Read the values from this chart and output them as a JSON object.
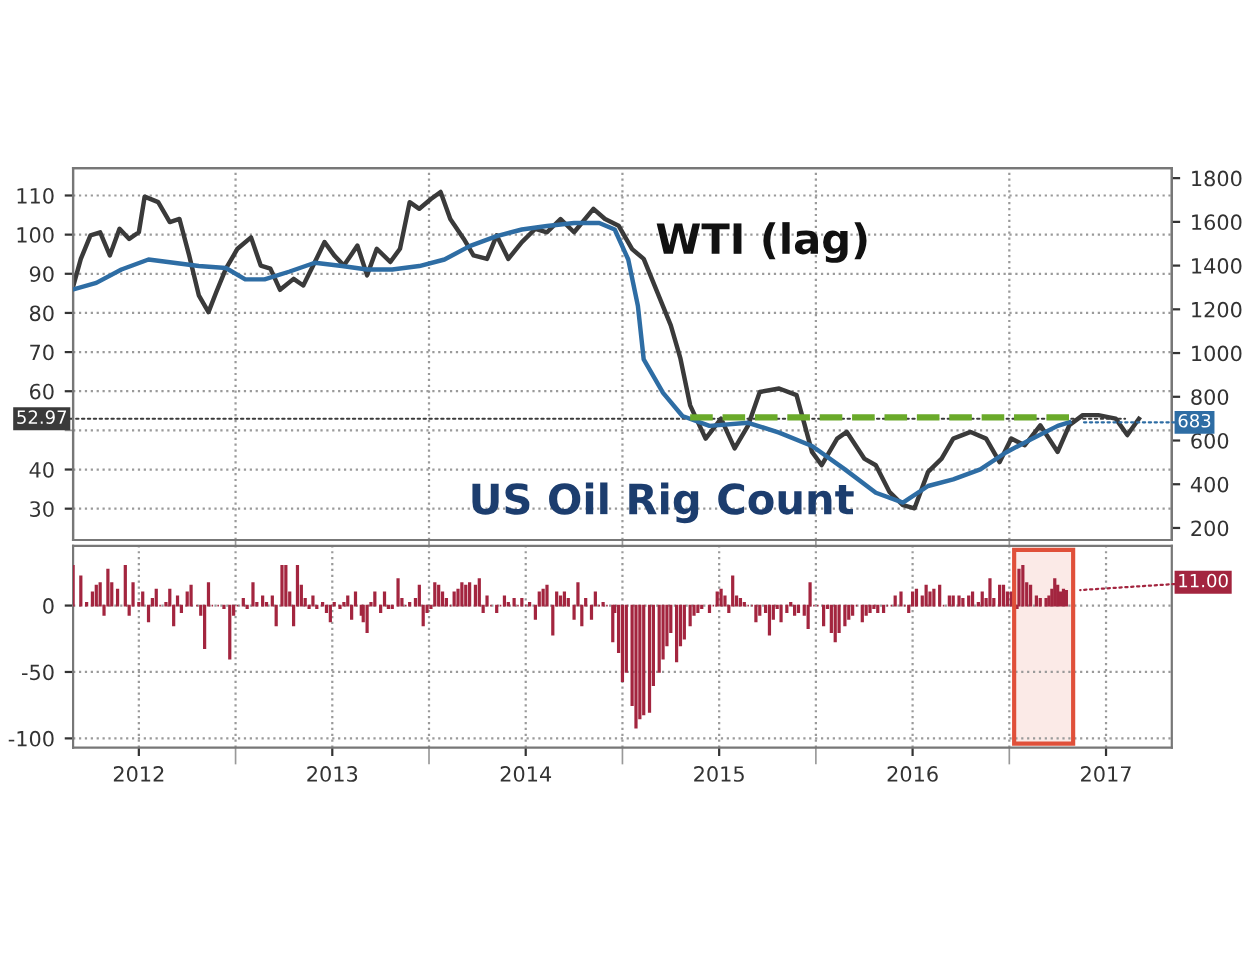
{
  "chart_data": [
    {
      "type": "line",
      "xlim": [
        2012.16,
        2017.84
      ],
      "xticks": [
        {
          "value": 2013,
          "label": null
        },
        {
          "value": 2014,
          "label": null
        },
        {
          "value": 2015,
          "label": null
        },
        {
          "value": 2016,
          "label": null
        },
        {
          "value": 2017,
          "label": null
        }
      ],
      "ylim": [
        22,
        117
      ],
      "yticks": [
        30,
        40,
        {
          "value": 50,
          "label": null
        },
        60,
        70,
        80,
        90,
        100,
        110
      ],
      "y2lim": [
        145,
        1846
      ],
      "y2ticks": [
        200,
        400,
        600,
        800,
        1000,
        1200,
        1400,
        1600,
        1800
      ],
      "tick_labels": "y",
      "grid": true,
      "annotations": [
        "WTI (lag)",
        "US Oil Rig Count"
      ],
      "series": [
        {
          "color": "#3a3a3a",
          "x": [
            2012.16,
            2012.2,
            2012.25,
            2012.3,
            2012.35,
            2012.4,
            2012.45,
            2012.5,
            2012.53,
            2012.6,
            2012.66,
            2012.71,
            2012.76,
            2012.81,
            2012.86,
            2012.9,
            2012.95,
            2013.01,
            2013.08,
            2013.13,
            2013.18,
            2013.23,
            2013.3,
            2013.35,
            2013.41,
            2013.46,
            2013.51,
            2013.56,
            2013.63,
            2013.68,
            2013.73,
            2013.8,
            2013.85,
            2013.9,
            2013.95,
            2014.01,
            2014.06,
            2014.11,
            2014.18,
            2014.23,
            2014.3,
            2014.35,
            2014.41,
            2014.48,
            2014.55,
            2014.61,
            2014.68,
            2014.75,
            2014.85,
            2014.91,
            2014.98,
            2015.05,
            2015.11,
            2015.18,
            2015.25,
            2015.3,
            2015.35,
            2015.43,
            2015.51,
            2015.58,
            2015.65,
            2015.71,
            2015.81,
            2015.9,
            2015.98,
            2016.03,
            2016.11,
            2016.16,
            2016.25,
            2016.31,
            2016.38,
            2016.45,
            2016.51,
            2016.58,
            2016.65,
            2016.71,
            2016.8,
            2016.88,
            2016.95,
            2017.01,
            2017.08,
            2017.16,
            2017.25,
            2017.31,
            2017.38,
            2017.46,
            2017.55,
            2017.61,
            2017.67
          ],
          "values": [
            86.7,
            93.8,
            99.8,
            100.6,
            94.7,
            101.5,
            98.9,
            100.6,
            109.7,
            108.3,
            103.2,
            104,
            94.7,
            84.5,
            80.2,
            85.3,
            91.3,
            96.4,
            99.3,
            92.1,
            91.3,
            85.9,
            88.7,
            87,
            93,
            98.1,
            94.7,
            92.1,
            97.2,
            89.6,
            96.4,
            93,
            96.4,
            108.3,
            106.6,
            109.1,
            110.9,
            104,
            98.9,
            94.7,
            93.8,
            99.8,
            93.8,
            98.1,
            101.5,
            100.6,
            104,
            100.6,
            106.6,
            104,
            102.3,
            96.3,
            93.8,
            85.3,
            76.8,
            68.3,
            56.4,
            47.9,
            53,
            45.4,
            51.3,
            59.8,
            60.7,
            59,
            44.5,
            41.1,
            47.9,
            49.6,
            42.8,
            41.1,
            34.3,
            30.9,
            30.1,
            39.4,
            42.8,
            47.9,
            49.6,
            47.9,
            41.9,
            47.9,
            46.2,
            51.3,
            44.5,
            51.3,
            53.9,
            53.9,
            53,
            48.8,
            52.97
          ],
          "value_labels": [
            null,
            null,
            null,
            null,
            null,
            null,
            null,
            null,
            null,
            null,
            null,
            null,
            null,
            null,
            null,
            null,
            null,
            null,
            null,
            null,
            null,
            null,
            null,
            null,
            null,
            null,
            null,
            null,
            null,
            null,
            null,
            null,
            null,
            null,
            null,
            null,
            null,
            null,
            null,
            null,
            null,
            null,
            null,
            null,
            null,
            null,
            null,
            null,
            null,
            null,
            null,
            null,
            null,
            null,
            null,
            null,
            null,
            null,
            null,
            null,
            null,
            null,
            null,
            null,
            null,
            null,
            null,
            null,
            null,
            null,
            null,
            null,
            null,
            null,
            null,
            null,
            null,
            null,
            null,
            null,
            null,
            null,
            null,
            null,
            null,
            null,
            null,
            null,
            "52.97"
          ]
        },
        {
          "color": "#2e6da4",
          "axis": "y2",
          "x": [
            2012.16,
            2012.28,
            2012.41,
            2012.55,
            2012.68,
            2012.81,
            2012.95,
            2013.05,
            2013.15,
            2013.28,
            2013.41,
            2013.55,
            2013.68,
            2013.81,
            2013.95,
            2014.08,
            2014.21,
            2014.35,
            2014.48,
            2014.61,
            2014.75,
            2014.88,
            2014.96,
            2015.03,
            2015.08,
            2015.11,
            2015.21,
            2015.31,
            2015.45,
            2015.65,
            2015.81,
            2015.98,
            2016.15,
            2016.31,
            2016.45,
            2016.58,
            2016.71,
            2016.85,
            2016.98,
            2017.11,
            2017.25,
            2017.31
          ],
          "values": [
            1291,
            1321,
            1382,
            1428,
            1413,
            1398,
            1389,
            1337,
            1337,
            1373,
            1413,
            1398,
            1382,
            1382,
            1398,
            1428,
            1489,
            1535,
            1565,
            1581,
            1595,
            1595,
            1565,
            1428,
            1215,
            971,
            818,
            712,
            667,
            681,
            636,
            575,
            468,
            361,
            316,
            392,
            422,
            468,
            544,
            605,
            667,
            683
          ],
          "value_labels": [
            null,
            null,
            null,
            null,
            null,
            null,
            null,
            null,
            null,
            null,
            null,
            null,
            null,
            null,
            null,
            null,
            null,
            null,
            null,
            null,
            null,
            null,
            null,
            null,
            null,
            null,
            null,
            null,
            null,
            null,
            null,
            null,
            null,
            null,
            null,
            null,
            null,
            null,
            null,
            null,
            null,
            "683"
          ]
        },
        {
          "color": "#6aaa2a",
          "axis": "y2",
          "line_style": "dashed",
          "x": [
            2015.35,
            2017.31
          ],
          "values": [
            706,
            706
          ]
        }
      ]
    },
    {
      "type": "bar",
      "color": "#a3253f",
      "xlim": [
        2012.16,
        2017.84
      ],
      "xticks": [
        {
          "value": 2012.5,
          "label": "2012"
        },
        {
          "value": 2013.5,
          "label": "2013"
        },
        {
          "value": 2014.5,
          "label": "2014"
        },
        {
          "value": 2015.5,
          "label": "2015"
        },
        {
          "value": 2016.5,
          "label": "2016"
        },
        {
          "value": 2017.5,
          "label": "2017"
        },
        {
          "value": 2013,
          "label": null
        },
        {
          "value": 2014,
          "label": null
        },
        {
          "value": 2015,
          "label": null
        },
        {
          "value": 2016,
          "label": null
        },
        {
          "value": 2017,
          "label": null
        }
      ],
      "ylim": [
        -107,
        45
      ],
      "yticks": [
        -100,
        -50,
        0
      ],
      "grid": true,
      "annotations": [
        {
          "text": "11.00",
          "x": 2017.295,
          "y": 11
        }
      ],
      "bands": [
        {
          "axis": "x",
          "from": 2017.025,
          "to": 2017.33,
          "color": "#e0503a"
        }
      ],
      "x": [
        2012.16,
        2012.2,
        2012.23,
        2012.26,
        2012.28,
        2012.3,
        2012.32,
        2012.34,
        2012.36,
        2012.39,
        2012.43,
        2012.45,
        2012.47,
        2012.5,
        2012.52,
        2012.55,
        2012.57,
        2012.59,
        2012.61,
        2012.64,
        2012.66,
        2012.68,
        2012.7,
        2012.72,
        2012.75,
        2012.77,
        2012.8,
        2012.82,
        2012.84,
        2012.86,
        2012.88,
        2012.91,
        2012.94,
        2012.97,
        2012.99,
        2013.01,
        2013.04,
        2013.06,
        2013.09,
        2013.11,
        2013.14,
        2013.16,
        2013.19,
        2013.21,
        2013.24,
        2013.26,
        2013.28,
        2013.3,
        2013.32,
        2013.34,
        2013.36,
        2013.38,
        2013.4,
        2013.42,
        2013.45,
        2013.47,
        2013.49,
        2013.51,
        2013.54,
        2013.56,
        2013.58,
        2013.6,
        2013.62,
        2013.65,
        2013.66,
        2013.68,
        2013.7,
        2013.72,
        2013.75,
        2013.77,
        2013.79,
        2013.81,
        2013.84,
        2013.86,
        2013.88,
        2013.9,
        2013.93,
        2013.95,
        2013.97,
        2013.99,
        2014.01,
        2014.03,
        2014.05,
        2014.07,
        2014.09,
        2014.11,
        2014.13,
        2014.15,
        2014.17,
        2014.19,
        2014.21,
        2014.24,
        2014.26,
        2014.28,
        2014.3,
        2014.32,
        2014.35,
        2014.37,
        2014.39,
        2014.41,
        2014.44,
        2014.46,
        2014.48,
        2014.5,
        2014.52,
        2014.55,
        2014.57,
        2014.59,
        2014.61,
        2014.64,
        2014.66,
        2014.68,
        2014.7,
        2014.72,
        2014.75,
        2014.77,
        2014.79,
        2014.81,
        2014.84,
        2014.86,
        2014.88,
        2014.9,
        2014.92,
        2014.95,
        2014.96,
        2014.98,
        2015.0,
        2015.02,
        2015.05,
        2015.07,
        2015.09,
        2015.11,
        2015.14,
        2015.16,
        2015.19,
        2015.21,
        2015.23,
        2015.25,
        2015.28,
        2015.3,
        2015.32,
        2015.35,
        2015.37,
        2015.39,
        2015.41,
        2015.45,
        2015.47,
        2015.49,
        2015.51,
        2015.53,
        2015.55,
        2015.57,
        2015.59,
        2015.61,
        2015.63,
        2015.65,
        2015.67,
        2015.69,
        2015.71,
        2015.74,
        2015.76,
        2015.78,
        2015.8,
        2015.82,
        2015.85,
        2015.87,
        2015.89,
        2015.91,
        2015.94,
        2015.96,
        2015.97,
        2015.99,
        2016.01,
        2016.04,
        2016.06,
        2016.08,
        2016.1,
        2016.12,
        2016.15,
        2016.17,
        2016.19,
        2016.21,
        2016.24,
        2016.26,
        2016.28,
        2016.3,
        2016.32,
        2016.35,
        2016.37,
        2016.39,
        2016.41,
        2016.44,
        2016.46,
        2016.48,
        2016.5,
        2016.52,
        2016.55,
        2016.57,
        2016.59,
        2016.61,
        2016.64,
        2016.66,
        2016.69,
        2016.71,
        2016.74,
        2016.76,
        2016.79,
        2016.81,
        2016.84,
        2016.86,
        2016.88,
        2016.9,
        2016.92,
        2016.95,
        2016.97,
        2016.99,
        2017.01,
        2017.04,
        2017.05,
        2017.07,
        2017.09,
        2017.11,
        2017.14,
        2017.16,
        2017.19,
        2017.205,
        2017.22,
        2017.235,
        2017.25,
        2017.265,
        2017.28,
        2017.295
      ],
      "series": [
        {
          "values": [
            30,
            22,
            2,
            10,
            15,
            17,
            -7,
            27,
            17,
            12,
            30,
            -7,
            17,
            2,
            10,
            -12,
            5,
            12,
            0,
            2,
            12,
            -15,
            7,
            -5,
            10,
            15,
            0,
            -7,
            -32,
            17,
            0,
            0,
            -2,
            -40,
            -7,
            0,
            5,
            -2,
            17,
            2,
            7,
            2,
            7,
            -15,
            30,
            30,
            10,
            -15,
            30,
            15,
            5,
            -2,
            7,
            -2,
            2,
            -5,
            -12,
            2,
            -2,
            2,
            7,
            -10,
            10,
            -7,
            -12,
            -20,
            2,
            10,
            -5,
            10,
            -2,
            -2,
            20,
            5,
            0,
            2,
            5,
            15,
            -15,
            -5,
            -2,
            17,
            15,
            10,
            5,
            0,
            10,
            12,
            17,
            15,
            17,
            15,
            20,
            -5,
            7,
            0,
            -5,
            0,
            7,
            2,
            5,
            0,
            5,
            0,
            2,
            -10,
            10,
            12,
            15,
            -22,
            10,
            7,
            10,
            5,
            -10,
            17,
            -15,
            5,
            -10,
            10,
            0,
            2,
            0,
            -27,
            -5,
            -35,
            -57,
            -50,
            -75,
            -92,
            -85,
            -82,
            -80,
            -60,
            -50,
            -40,
            -30,
            -20,
            -42,
            -30,
            -25,
            -15,
            -7,
            -5,
            -2,
            -5,
            0,
            10,
            12,
            7,
            -5,
            22,
            7,
            5,
            2,
            0,
            0,
            -12,
            -7,
            -5,
            -22,
            -10,
            -2,
            -12,
            -5,
            2,
            -7,
            -5,
            -7,
            -17,
            17,
            0,
            0,
            -15,
            -2,
            -20,
            -27,
            -20,
            -15,
            -10,
            -7,
            0,
            -12,
            -7,
            -5,
            -2,
            -5,
            -5,
            0,
            0,
            7,
            10,
            0,
            -5,
            10,
            12,
            7,
            15,
            10,
            12,
            15,
            0,
            7,
            7,
            7,
            5,
            7,
            10,
            2,
            10,
            5,
            20,
            5,
            15,
            15,
            10,
            10,
            -2,
            27,
            30,
            17,
            15,
            7,
            5,
            5,
            7,
            12,
            20,
            15,
            10,
            12,
            11
          ]
        }
      ]
    }
  ]
}
